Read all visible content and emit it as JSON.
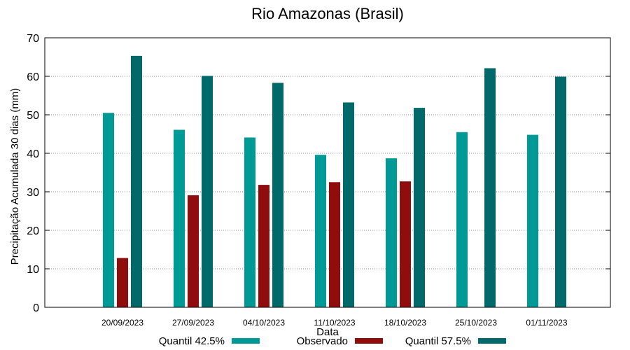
{
  "chart_data": {
    "type": "bar",
    "title": "Rio Amazonas (Brasil)",
    "xlabel": "Data",
    "ylabel": "Precipitação Acumulada 30 dias (mm)",
    "ylim": [
      0,
      70
    ],
    "yticks": [
      0,
      10,
      20,
      30,
      40,
      50,
      60,
      70
    ],
    "grid": true,
    "legend_position": "bottom",
    "categories": [
      "20/09/2023",
      "27/09/2023",
      "04/10/2023",
      "11/10/2023",
      "18/10/2023",
      "25/10/2023",
      "01/11/2023"
    ],
    "series": [
      {
        "name": "Quantil 42.5%",
        "color": "#009a96",
        "values": [
          50.5,
          46.1,
          44.1,
          39.6,
          38.7,
          45.5,
          44.8
        ]
      },
      {
        "name": "Observado",
        "color": "#900d0d",
        "values": [
          12.8,
          29.1,
          31.8,
          32.5,
          32.7,
          null,
          null
        ]
      },
      {
        "name": "Quantil 57.5%",
        "color": "#00696a",
        "values": [
          65.3,
          60.1,
          58.3,
          53.2,
          51.8,
          62.1,
          59.9
        ]
      }
    ]
  }
}
